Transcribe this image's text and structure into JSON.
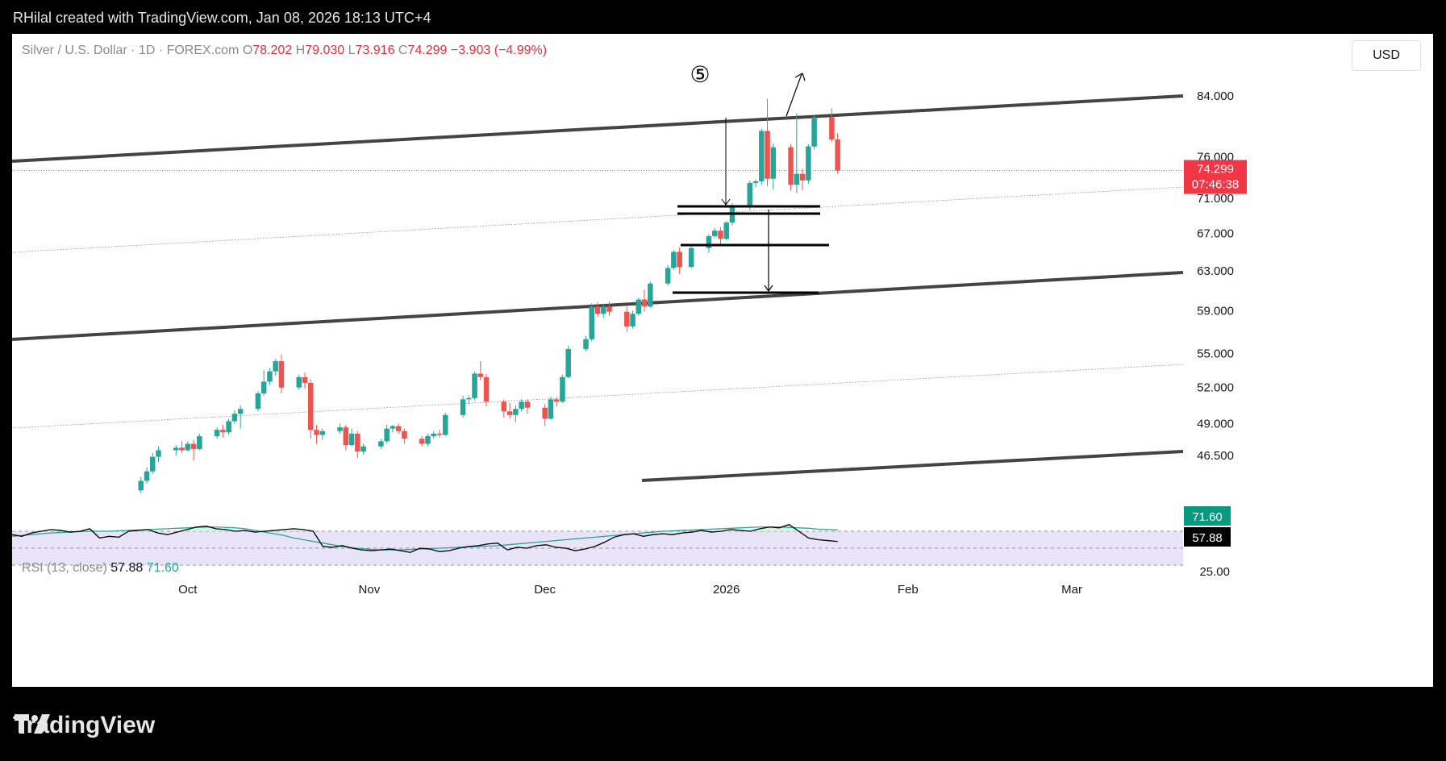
{
  "header": {
    "credit": "RHilal created with TradingView.com, Jan 08, 2026 18:13 UTC+4"
  },
  "legend": {
    "symbol": "Silver / U.S. Dollar · 1D · FOREX.com",
    "o_label": "O",
    "o_value": "78.202",
    "h_label": "H",
    "h_value": "79.030",
    "l_label": "L",
    "l_value": "73.916",
    "c_label": "C",
    "c_value": "74.299",
    "change": "−3.903 (−4.99%)"
  },
  "currency_button": "USD",
  "price_label": {
    "value": "74.299",
    "countdown": "07:46:38"
  },
  "wave_label": "⑤",
  "rsi": {
    "name": "RSI (13, close)",
    "value": "57.88",
    "ma_value": "71.60"
  },
  "footer": {
    "brand": "TradingView"
  },
  "colors": {
    "up": "#26a69a",
    "down": "#ef5350",
    "rsi_band": "#e9e3f7",
    "rsi_fill": "#d6f0da"
  },
  "chart_data": [
    {
      "type": "candlestick",
      "title": "Silver / U.S. Dollar · 1D · FOREX.com",
      "y_scale": "log",
      "ylim": [
        44.0,
        90.0
      ],
      "y_ticks": [
        46.5,
        49.0,
        52.0,
        55.0,
        59.0,
        63.0,
        67.0,
        71.0,
        76.0,
        84.0
      ],
      "y_tick_labels": [
        "46.500",
        "49.000",
        "52.000",
        "55.000",
        "59.000",
        "63.000",
        "67.000",
        "71.000",
        "76.000",
        "84.000"
      ],
      "x_tick_labels": [
        "Oct",
        "Nov",
        "Dec",
        "2026",
        "Feb",
        "Mar"
      ],
      "x_tick_dates": [
        "2025-10-01",
        "2025-11-01",
        "2025-12-01",
        "2026-01-01",
        "2026-02-01",
        "2026-03-01"
      ],
      "x_range": [
        "2025-09-01",
        "2026-03-20"
      ],
      "last_price": 74.299,
      "candles": [
        [
          "2025-09-23",
          43.9,
          44.9,
          43.7,
          44.6
        ],
        [
          "2025-09-24",
          44.6,
          45.6,
          44.4,
          45.3
        ],
        [
          "2025-09-25",
          45.3,
          46.7,
          45.1,
          46.4
        ],
        [
          "2025-09-26",
          46.4,
          47.2,
          46.0,
          46.9
        ],
        [
          "2025-09-29",
          46.9,
          47.3,
          46.5,
          47.1
        ],
        [
          "2025-09-30",
          47.1,
          47.6,
          46.7,
          46.9
        ],
        [
          "2025-10-01",
          46.9,
          47.6,
          46.8,
          47.4
        ],
        [
          "2025-10-02",
          47.4,
          47.7,
          46.1,
          47.0
        ],
        [
          "2025-10-03",
          47.0,
          48.2,
          46.9,
          48.0
        ],
        [
          "2025-10-06",
          48.0,
          48.7,
          47.8,
          48.5
        ],
        [
          "2025-10-07",
          48.5,
          48.9,
          47.9,
          48.3
        ],
        [
          "2025-10-08",
          48.3,
          49.4,
          48.1,
          49.2
        ],
        [
          "2025-10-09",
          49.2,
          50.1,
          49.0,
          49.8
        ],
        [
          "2025-10-10",
          49.8,
          50.5,
          48.6,
          50.2
        ],
        [
          "2025-10-13",
          50.2,
          51.7,
          50.0,
          51.5
        ],
        [
          "2025-10-14",
          51.5,
          53.5,
          51.3,
          52.5
        ],
        [
          "2025-10-15",
          52.5,
          53.7,
          52.2,
          53.4
        ],
        [
          "2025-10-16",
          53.4,
          54.5,
          53.0,
          54.3
        ],
        [
          "2025-10-17",
          54.3,
          54.9,
          51.5,
          52.0
        ],
        [
          "2025-10-20",
          52.0,
          53.1,
          51.8,
          52.9
        ],
        [
          "2025-10-21",
          52.9,
          53.3,
          51.9,
          52.4
        ],
        [
          "2025-10-22",
          52.4,
          52.7,
          47.8,
          48.5
        ],
        [
          "2025-10-23",
          48.5,
          48.9,
          47.4,
          48.1
        ],
        [
          "2025-10-24",
          48.1,
          48.6,
          47.7,
          48.4
        ],
        [
          "2025-10-27",
          48.4,
          49.0,
          48.2,
          48.7
        ],
        [
          "2025-10-28",
          48.7,
          48.9,
          46.9,
          47.3
        ],
        [
          "2025-10-29",
          47.3,
          48.6,
          47.2,
          48.2
        ],
        [
          "2025-10-30",
          48.2,
          48.4,
          46.3,
          46.8
        ],
        [
          "2025-10-31",
          46.8,
          47.4,
          46.6,
          47.2
        ],
        [
          "2025-11-03",
          47.2,
          47.8,
          47.0,
          47.6
        ],
        [
          "2025-11-04",
          47.6,
          48.9,
          47.4,
          48.6
        ],
        [
          "2025-11-05",
          48.6,
          48.9,
          48.3,
          48.8
        ],
        [
          "2025-11-06",
          48.8,
          49.0,
          48.2,
          48.4
        ],
        [
          "2025-11-07",
          48.4,
          48.6,
          47.4,
          47.8
        ],
        [
          "2025-11-10",
          47.8,
          48.0,
          47.2,
          47.4
        ],
        [
          "2025-11-11",
          47.4,
          48.2,
          47.2,
          48.0
        ],
        [
          "2025-11-12",
          48.0,
          48.4,
          47.8,
          48.2
        ],
        [
          "2025-11-13",
          48.2,
          48.5,
          47.9,
          48.1
        ],
        [
          "2025-11-14",
          48.1,
          49.9,
          48.0,
          49.7
        ],
        [
          "2025-11-17",
          49.7,
          51.3,
          49.5,
          51.0
        ],
        [
          "2025-11-18",
          51.0,
          51.3,
          50.6,
          51.1
        ],
        [
          "2025-11-19",
          51.1,
          53.4,
          50.9,
          53.2
        ],
        [
          "2025-11-20",
          53.2,
          54.3,
          52.6,
          52.9
        ],
        [
          "2025-11-21",
          52.9,
          53.2,
          50.4,
          50.8
        ],
        [
          "2025-11-24",
          50.8,
          51.0,
          49.5,
          50.0
        ],
        [
          "2025-11-25",
          50.0,
          50.7,
          49.4,
          49.7
        ],
        [
          "2025-11-26",
          49.7,
          50.5,
          49.1,
          50.2
        ],
        [
          "2025-11-27",
          50.2,
          51.0,
          50.0,
          50.8
        ],
        [
          "2025-11-28",
          50.8,
          51.0,
          49.8,
          50.3
        ],
        [
          "2025-12-01",
          50.3,
          50.6,
          48.8,
          49.4
        ],
        [
          "2025-12-02",
          49.4,
          51.2,
          49.3,
          51.0
        ],
        [
          "2025-12-03",
          51.0,
          51.2,
          50.4,
          50.8
        ],
        [
          "2025-12-04",
          50.8,
          53.1,
          50.7,
          52.9
        ],
        [
          "2025-12-05",
          52.9,
          55.7,
          52.8,
          55.4
        ],
        [
          "2025-12-08",
          55.4,
          56.6,
          55.2,
          56.3
        ],
        [
          "2025-12-09",
          56.3,
          59.7,
          56.1,
          59.4
        ],
        [
          "2025-12-10",
          59.4,
          59.8,
          58.4,
          58.7
        ],
        [
          "2025-12-11",
          58.7,
          59.7,
          58.3,
          59.4
        ],
        [
          "2025-12-12",
          59.4,
          59.9,
          58.5,
          58.9
        ],
        [
          "2025-12-15",
          58.9,
          59.4,
          57.0,
          57.5
        ],
        [
          "2025-12-16",
          57.5,
          59.0,
          57.3,
          58.7
        ],
        [
          "2025-12-17",
          58.7,
          60.3,
          58.5,
          60.1
        ],
        [
          "2025-12-18",
          60.1,
          61.1,
          58.9,
          59.4
        ],
        [
          "2025-12-19",
          59.4,
          61.9,
          59.3,
          61.7
        ],
        [
          "2025-12-22",
          61.7,
          63.6,
          61.5,
          63.3
        ],
        [
          "2025-12-23",
          63.3,
          65.2,
          63.1,
          65.0
        ],
        [
          "2025-12-24",
          65.0,
          65.5,
          62.7,
          63.4
        ],
        [
          "2025-12-26",
          63.4,
          65.6,
          63.3,
          65.4
        ],
        [
          "2025-12-29",
          65.4,
          66.9,
          64.9,
          66.7
        ],
        [
          "2025-12-30",
          66.7,
          67.6,
          66.5,
          67.3
        ],
        [
          "2025-12-31",
          67.3,
          67.7,
          65.8,
          66.4
        ],
        [
          "2026-01-01",
          66.4,
          68.4,
          66.2,
          68.2
        ],
        [
          "2026-01-02",
          68.2,
          70.4,
          67.9,
          70.1
        ],
        [
          "2026-01-05",
          70.1,
          73.1,
          69.6,
          72.8
        ],
        [
          "2026-01-06",
          72.8,
          73.2,
          72.3,
          73.0
        ],
        [
          "2026-01-07",
          73.0,
          79.6,
          72.6,
          79.3
        ],
        [
          "2026-01-08",
          79.3,
          83.6,
          72.4,
          73.3
        ],
        [
          "2026-01-09",
          73.3,
          77.7,
          72.0,
          77.2
        ],
        [
          "2026-01-12",
          77.2,
          77.6,
          71.9,
          72.6
        ],
        [
          "2026-01-13",
          72.6,
          81.6,
          71.6,
          73.9
        ],
        [
          "2026-01-14",
          73.9,
          74.5,
          71.9,
          73.1
        ],
        [
          "2026-01-15",
          73.1,
          77.6,
          72.7,
          77.3
        ],
        [
          "2026-01-16",
          77.3,
          81.4,
          76.9,
          81.1
        ],
        [
          "2026-01-19",
          81.1,
          82.3,
          77.9,
          78.2
        ],
        [
          "2026-01-20",
          78.202,
          79.03,
          73.916,
          74.299
        ]
      ]
    },
    {
      "type": "line",
      "title": "RSI (13, close)",
      "ylim": [
        20,
        100
      ],
      "y_ticks": [
        25
      ],
      "y_tick_labels": [
        "25.00"
      ],
      "bands": [
        70,
        50,
        30
      ],
      "series": [
        {
          "name": "RSI",
          "x_range": [
            "2025-09-01",
            "2026-01-20"
          ],
          "values": [
            66,
            64,
            68,
            70,
            72,
            71,
            69,
            70,
            73,
            62,
            64,
            63,
            70,
            71,
            72,
            68,
            66,
            69,
            72,
            75,
            76,
            73,
            72,
            70,
            71,
            69,
            70,
            71,
            72,
            73,
            72,
            70,
            52,
            51,
            53,
            50,
            48,
            47,
            48,
            49,
            47,
            45,
            50,
            49,
            46,
            47,
            50,
            52,
            53,
            55,
            56,
            48,
            51,
            50,
            53,
            54,
            51,
            50,
            47,
            49,
            52,
            57,
            63,
            66,
            67,
            64,
            66,
            67,
            66,
            68,
            69,
            71,
            69,
            70,
            72,
            71,
            70,
            73,
            75,
            74,
            78,
            70,
            62,
            60,
            59,
            57.88
          ]
        },
        {
          "name": "RSI-based MA",
          "x_range": [
            "2025-09-01",
            "2026-01-20"
          ],
          "values": [
            64,
            65,
            66,
            67,
            68,
            68.5,
            69,
            69.5,
            70,
            70,
            70,
            70.5,
            71,
            71.5,
            72,
            72.5,
            73,
            73.5,
            74,
            74.5,
            75,
            75,
            74.5,
            74,
            73,
            71,
            69,
            67,
            65,
            62,
            60,
            58,
            56,
            54,
            52,
            50.5,
            49.5,
            48.5,
            48,
            48,
            48,
            48.5,
            49,
            49.5,
            50,
            50.5,
            51,
            51.5,
            52,
            52.5,
            53,
            54,
            55,
            56,
            57,
            58,
            59,
            60,
            61,
            62,
            63,
            64,
            65,
            66,
            67,
            68,
            69,
            70,
            70.5,
            71,
            71.5,
            72,
            72.5,
            73,
            73.5,
            74,
            74.5,
            75,
            75,
            75,
            74.5,
            74,
            73.5,
            72.5,
            72,
            71.6
          ]
        }
      ]
    }
  ],
  "x_axis_labels": [
    "Oct",
    "Nov",
    "Dec",
    "2026",
    "Feb",
    "Mar"
  ],
  "rsi_axis_labels": {
    "band": "71.60",
    "value": "57.88",
    "floor": "25.00"
  }
}
